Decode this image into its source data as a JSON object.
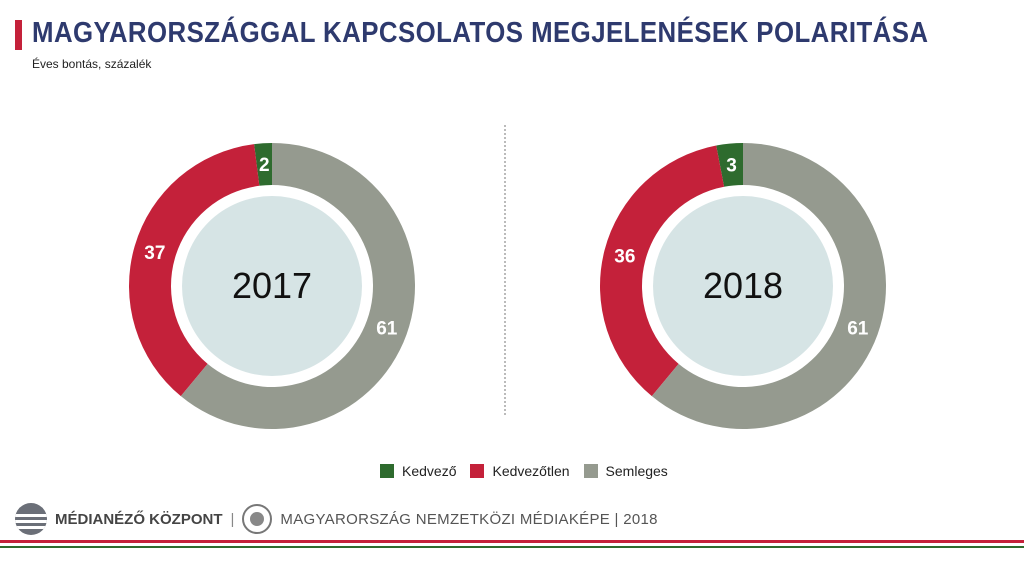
{
  "header": {
    "title": "MAGYARORSZÁGGAL KAPCSOLATOS MEGJELENÉSEK POLARITÁSA",
    "subtitle": "Éves bontás, százalék"
  },
  "chart_data": [
    {
      "type": "pie",
      "center_label": "2017",
      "categories": [
        "Kedvező",
        "Kedvezőtlen",
        "Semleges"
      ],
      "values": [
        2,
        37,
        61
      ],
      "colors": [
        "#2e6b2e",
        "#c4213a",
        "#959a8f"
      ]
    },
    {
      "type": "pie",
      "center_label": "2018",
      "categories": [
        "Kedvező",
        "Kedvezőtlen",
        "Semleges"
      ],
      "values": [
        3,
        36,
        61
      ],
      "colors": [
        "#2e6b2e",
        "#c4213a",
        "#959a8f"
      ]
    }
  ],
  "legend": {
    "items": [
      {
        "label": "Kedvező",
        "color": "#2e6b2e"
      },
      {
        "label": "Kedvezőtlen",
        "color": "#c4213a"
      },
      {
        "label": "Semleges",
        "color": "#959a8f"
      }
    ]
  },
  "footer": {
    "brand": "MÉDIANÉZŐ KÖZPONT",
    "separator": "|",
    "publication": "MAGYARORSZÁG NEMZETKÖZI MÉDIAKÉPE | 2018"
  },
  "colors": {
    "inner_circle": "#d6e4e5",
    "title": "#2e3a6e",
    "accent": "#c4213a"
  }
}
